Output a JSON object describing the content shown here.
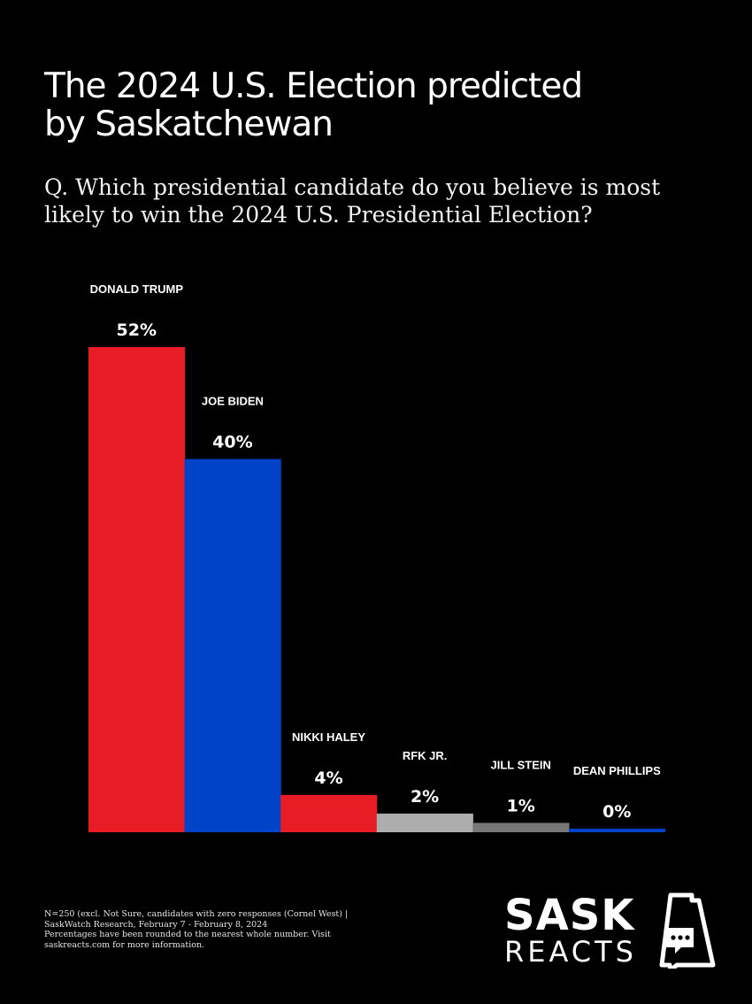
{
  "header": {
    "title_line1": "The 2024 U.S. Election predicted",
    "title_line2": "by Saskatchewan",
    "question_line1": "Q. Which presidential candidate do you believe is most",
    "question_line2": "likely to win the 2024 U.S. Presidential Election?"
  },
  "chart_data": {
    "type": "bar",
    "categories": [
      "DONALD TRUMP",
      "JOE BIDEN",
      "NIKKI HALEY",
      "RFK JR.",
      "JILL STEIN",
      "DEAN PHILLIPS"
    ],
    "values": [
      52,
      40,
      4,
      2,
      1,
      0
    ],
    "value_labels": [
      "52%",
      "40%",
      "4%",
      "2%",
      "1%",
      "0%"
    ],
    "unit": "%",
    "colors": [
      "#e81c24",
      "#0042c8",
      "#e81c24",
      "#adadad",
      "#777777",
      "#0042c8"
    ],
    "ylim": [
      0,
      52
    ],
    "grid": false,
    "legend": "none"
  },
  "footnote": {
    "line1": "N=250 (excl. Not Sure, candidates with zero responses (Cornel West) |",
    "line2": "SaskWatch Research, February 7 - February 8, 2024",
    "line3": "Percentages have been rounded to the nearest whole number. Visit",
    "line4": "saskreacts.com for more information."
  },
  "logo": {
    "top": "SASK",
    "bottom": "REACTS",
    "icon": "saskatchewan-speech-bubble-icon"
  }
}
